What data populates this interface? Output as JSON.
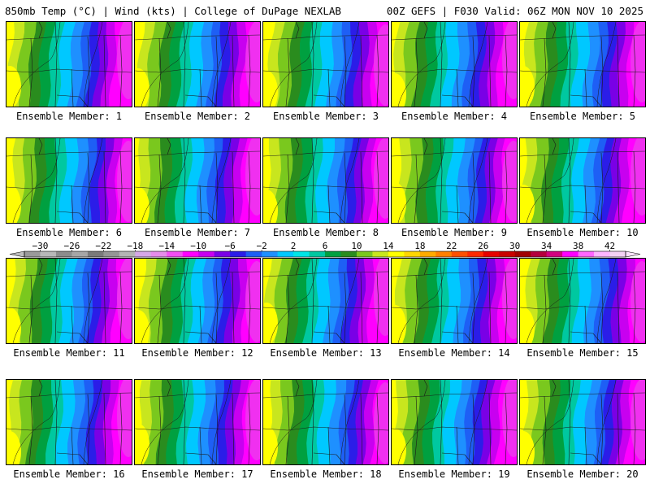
{
  "header": {
    "left": "850mb Temp (°C) | Wind (kts) | College of DuPage NEXLAB",
    "right": "00Z GEFS | F030 Valid: 06Z MON NOV 10 2025"
  },
  "panel_label_prefix": "Ensemble Member: ",
  "members": [
    1,
    2,
    3,
    4,
    5,
    6,
    7,
    8,
    9,
    10,
    11,
    12,
    13,
    14,
    15,
    16,
    17,
    18,
    19,
    20
  ],
  "colorbar": {
    "tick_labels": [
      "−30",
      "−26",
      "−22",
      "−18",
      "−14",
      "−10",
      "−6",
      "−2",
      "2",
      "6",
      "10",
      "14",
      "18",
      "22",
      "26",
      "30",
      "34",
      "38",
      "42"
    ],
    "ticks": [
      -30,
      -26,
      -22,
      -18,
      -14,
      -10,
      -6,
      -2,
      2,
      6,
      10,
      14,
      18,
      22,
      26,
      30,
      34,
      38,
      42
    ],
    "bins": [
      {
        "lo": -32,
        "color": "#9a9a9a"
      },
      {
        "lo": -30,
        "color": "#b8b8b8"
      },
      {
        "lo": -28,
        "color": "#8c8c8c"
      },
      {
        "lo": -26,
        "color": "#a6a6a6"
      },
      {
        "lo": -24,
        "color": "#7a7a7a"
      },
      {
        "lo": -22,
        "color": "#959595"
      },
      {
        "lo": -20,
        "color": "#b4b4b4"
      },
      {
        "lo": -18,
        "color": "#d6a7e6"
      },
      {
        "lo": -16,
        "color": "#e58ce9"
      },
      {
        "lo": -14,
        "color": "#f24ef2"
      },
      {
        "lo": -12,
        "color": "#ff00ff"
      },
      {
        "lo": -10,
        "color": "#c800f0"
      },
      {
        "lo": -8,
        "color": "#7a00e6"
      },
      {
        "lo": -6,
        "color": "#2b1de8"
      },
      {
        "lo": -4,
        "color": "#1e5ff5"
      },
      {
        "lo": -2,
        "color": "#1e90ff"
      },
      {
        "lo": 0,
        "color": "#00c8ff"
      },
      {
        "lo": 2,
        "color": "#00e5e5"
      },
      {
        "lo": 4,
        "color": "#00c8a0"
      },
      {
        "lo": 6,
        "color": "#00a040"
      },
      {
        "lo": 8,
        "color": "#2a8c1e"
      },
      {
        "lo": 10,
        "color": "#7ac81e"
      },
      {
        "lo": 12,
        "color": "#c8e61e"
      },
      {
        "lo": 14,
        "color": "#ffff00"
      },
      {
        "lo": 16,
        "color": "#ffd700"
      },
      {
        "lo": 18,
        "color": "#ffaa00"
      },
      {
        "lo": 20,
        "color": "#ff7f00"
      },
      {
        "lo": 22,
        "color": "#ff5000"
      },
      {
        "lo": 24,
        "color": "#ff2800"
      },
      {
        "lo": 26,
        "color": "#e60000"
      },
      {
        "lo": 28,
        "color": "#c80000"
      },
      {
        "lo": 30,
        "color": "#a00000"
      },
      {
        "lo": 32,
        "color": "#b4003c"
      },
      {
        "lo": 34,
        "color": "#d2007f"
      },
      {
        "lo": 36,
        "color": "#ff00ff"
      },
      {
        "lo": 38,
        "color": "#ff66ff"
      },
      {
        "lo": 40,
        "color": "#ffb4ff"
      },
      {
        "lo": 42,
        "color": "#f4d2f4"
      }
    ]
  },
  "map_palette": {
    "yellow": "#ffff00",
    "yellow_green": "#c8e61e",
    "light_green": "#7ac81e",
    "green": "#2a8c1e",
    "teal": "#00a040",
    "aqua": "#00c8a0",
    "cyan": "#00c8ff",
    "light_blue": "#1e90ff",
    "blue": "#1e5ff5",
    "dark_blue": "#2b1de8",
    "purple": "#7a00e6",
    "violet": "#c800f0",
    "magenta": "#ff00ff"
  }
}
